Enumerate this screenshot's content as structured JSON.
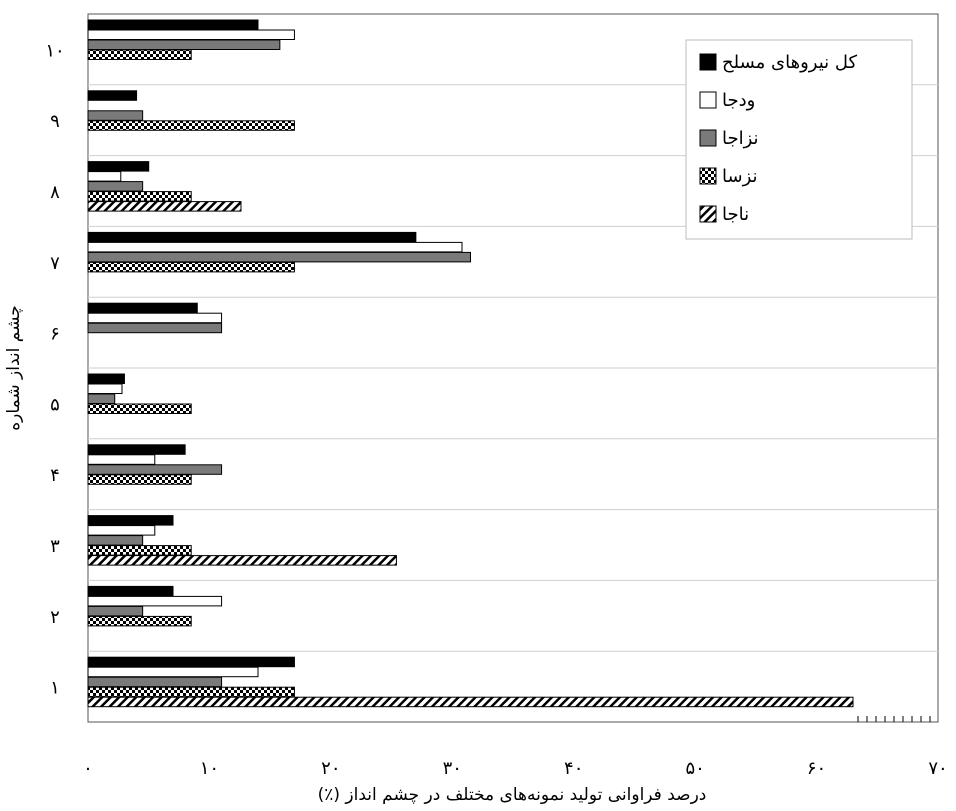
{
  "chart_data": {
    "type": "bar",
    "orientation": "horizontal",
    "title": "",
    "xlabel": "درصد فراوانی تولید نمونه‌های مختلف در چشم انداز (٪)",
    "ylabel": "چشم انداز شماره",
    "xlim": [
      0,
      70
    ],
    "x_ticks": [
      0,
      10,
      20,
      30,
      40,
      50,
      60,
      70
    ],
    "x_tick_labels": [
      "۰",
      "۱۰",
      "۲۰",
      "۳۰",
      "۴۰",
      "۵۰",
      "۶۰",
      "۷۰"
    ],
    "categories": [
      "۱",
      "۲",
      "۳",
      "۴",
      "۵",
      "۶",
      "۷",
      "۸",
      "۹",
      "۱۰"
    ],
    "grid": "horizontal separators between categories",
    "legend_position": "top-right",
    "series": [
      {
        "name": "کل نیروهای مسلح",
        "pattern": "solid-black",
        "values": [
          17,
          7,
          7,
          8,
          3,
          9,
          27,
          5,
          4,
          14
        ]
      },
      {
        "name": "ودجا",
        "pattern": "white",
        "values": [
          14,
          11,
          5.5,
          5.5,
          2.8,
          11,
          30.8,
          2.7,
          0,
          17
        ]
      },
      {
        "name": "نزاجا",
        "pattern": "gray",
        "values": [
          11,
          4.5,
          4.5,
          11,
          2.2,
          11,
          31.5,
          4.5,
          4.5,
          15.8
        ]
      },
      {
        "name": "نزسا",
        "pattern": "checker",
        "values": [
          17,
          8.5,
          8.5,
          8.5,
          8.5,
          0,
          17,
          8.5,
          17,
          8.5
        ]
      },
      {
        "name": "ناجا",
        "pattern": "hatch",
        "values": [
          63,
          0,
          25.4,
          0,
          0,
          0,
          0,
          12.6,
          0,
          0
        ]
      }
    ]
  }
}
